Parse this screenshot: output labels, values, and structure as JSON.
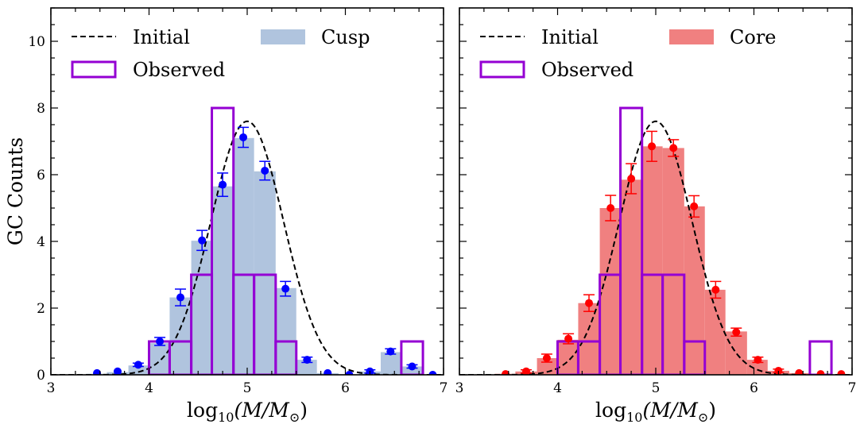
{
  "chart_data": [
    {
      "type": "bar",
      "panel": "left",
      "ylabel": "GC Counts",
      "xlabel_base": "log",
      "xlabel_sub": "10",
      "xlabel_rest": "(M/M",
      "xlabel_sun": "⊙",
      "xlabel_close": ")",
      "xlim": [
        3,
        7
      ],
      "ylim": [
        0,
        11
      ],
      "xticks": [
        "3",
        "4",
        "5",
        "6",
        "7"
      ],
      "yticks": [
        "0",
        "2",
        "4",
        "6",
        "8",
        "10"
      ],
      "grid": false,
      "legend": {
        "placement": "top",
        "initial_label": "Initial",
        "observed_label": "Observed",
        "model_label": "Cusp"
      },
      "model_color": "#b0c4de",
      "point_color": "#0000ff",
      "model_hist": {
        "bin_edges": [
          3.36,
          3.57,
          3.79,
          4.0,
          4.21,
          4.43,
          4.64,
          4.86,
          5.07,
          5.29,
          5.5,
          5.71,
          5.93,
          6.14,
          6.36,
          6.57,
          6.79,
          7.0
        ],
        "values": [
          0.03,
          0.08,
          0.28,
          0.95,
          2.32,
          4.02,
          5.65,
          7.1,
          6.1,
          2.6,
          0.45,
          0.05,
          0.0,
          0.1,
          0.68,
          0.25,
          0.0
        ]
      },
      "points": {
        "x": [
          3.47,
          3.68,
          3.89,
          4.11,
          4.32,
          4.54,
          4.75,
          4.96,
          5.18,
          5.39,
          5.61,
          5.82,
          6.04,
          6.25,
          6.46,
          6.68,
          6.89
        ],
        "y": [
          0.05,
          0.1,
          0.3,
          1.0,
          2.32,
          4.03,
          5.7,
          7.12,
          6.12,
          2.58,
          0.45,
          0.05,
          0.0,
          0.1,
          0.7,
          0.25,
          0.0
        ],
        "err": [
          0.0,
          0.0,
          0.05,
          0.12,
          0.25,
          0.3,
          0.35,
          0.3,
          0.28,
          0.22,
          0.08,
          0.0,
          0.0,
          0.05,
          0.08,
          0.05,
          0.0
        ]
      },
      "observed_hist": {
        "bin_edges": [
          4.0,
          4.21,
          4.43,
          4.64,
          4.86,
          5.07,
          5.29,
          5.5,
          6.57,
          6.79
        ],
        "values": [
          1,
          1,
          3,
          8,
          3,
          3,
          1,
          0,
          1
        ]
      },
      "initial_curve": {
        "amplitude": 7.6,
        "mean": 5.0,
        "sigma": 0.37
      }
    },
    {
      "type": "bar",
      "panel": "right",
      "ylabel": "",
      "xlabel_base": "log",
      "xlabel_sub": "10",
      "xlabel_rest": "(M/M",
      "xlabel_sun": "⊙",
      "xlabel_close": ")",
      "xlim": [
        3,
        7
      ],
      "ylim": [
        0,
        11
      ],
      "xticks": [
        "3",
        "4",
        "5",
        "6",
        "7"
      ],
      "yticks": [],
      "grid": false,
      "legend": {
        "placement": "top",
        "initial_label": "Initial",
        "observed_label": "Observed",
        "model_label": "Core"
      },
      "model_color": "#f08080",
      "point_color": "#ff0000",
      "model_hist": {
        "bin_edges": [
          3.36,
          3.57,
          3.79,
          4.0,
          4.21,
          4.43,
          4.64,
          4.86,
          5.07,
          5.29,
          5.5,
          5.71,
          5.93,
          6.14,
          6.36,
          6.57,
          6.79,
          7.0
        ],
        "values": [
          0.03,
          0.1,
          0.5,
          1.05,
          2.15,
          5.0,
          5.85,
          6.85,
          6.8,
          5.05,
          2.55,
          1.3,
          0.45,
          0.12,
          0.05,
          0.0,
          0.0
        ]
      },
      "points": {
        "x": [
          3.47,
          3.68,
          3.89,
          4.11,
          4.32,
          4.54,
          4.75,
          4.96,
          5.18,
          5.39,
          5.61,
          5.82,
          6.04,
          6.25,
          6.46,
          6.68,
          6.89
        ],
        "y": [
          0.02,
          0.1,
          0.5,
          1.08,
          2.15,
          5.0,
          5.88,
          6.85,
          6.8,
          5.05,
          2.55,
          1.28,
          0.45,
          0.12,
          0.05,
          0.02,
          0.02
        ],
        "err": [
          0.0,
          0.05,
          0.12,
          0.15,
          0.25,
          0.38,
          0.45,
          0.45,
          0.25,
          0.32,
          0.25,
          0.12,
          0.08,
          0.05,
          0.0,
          0.0,
          0.0
        ]
      },
      "observed_hist": {
        "bin_edges": [
          4.0,
          4.21,
          4.43,
          4.64,
          4.86,
          5.07,
          5.29,
          5.5,
          6.57,
          6.79
        ],
        "values": [
          1,
          1,
          3,
          8,
          3,
          3,
          1,
          0,
          1
        ]
      },
      "initial_curve": {
        "amplitude": 7.6,
        "mean": 5.0,
        "sigma": 0.37
      }
    }
  ]
}
